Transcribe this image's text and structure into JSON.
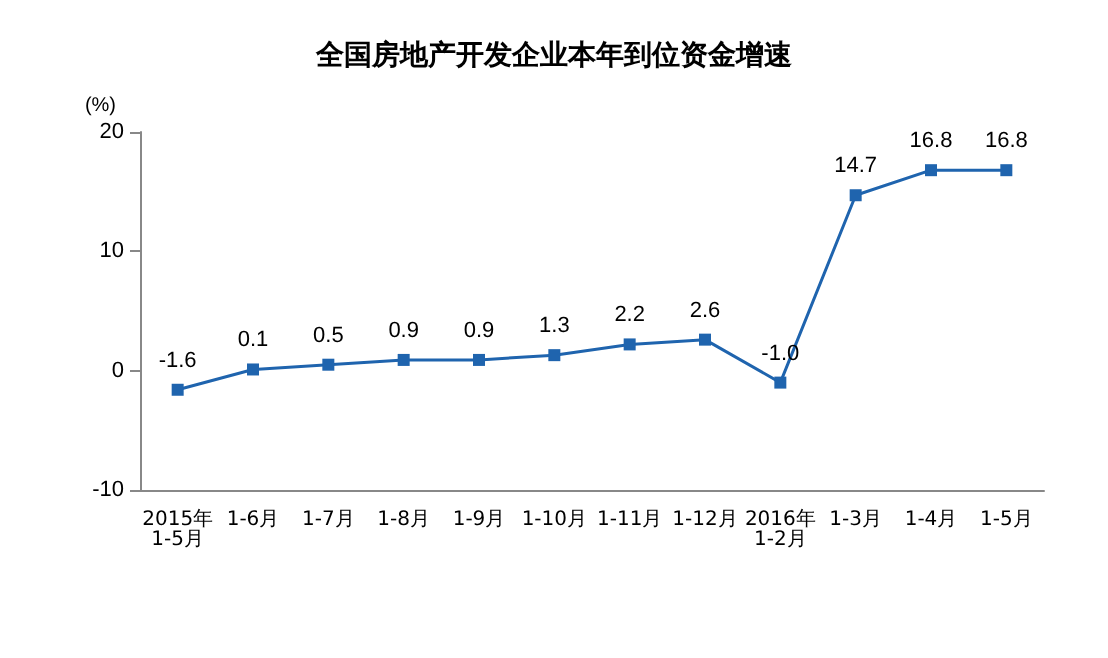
{
  "chart_data": {
    "type": "line",
    "title": "全国房地产开发企业本年到位资金增速",
    "ylabel": "(%)",
    "categories": [
      "2015年\n1-5月",
      "1-6月",
      "1-7月",
      "1-8月",
      "1-9月",
      "1-10月",
      "1-11月",
      "1-12月",
      "2016年\n1-2月",
      "1-3月",
      "1-4月",
      "1-5月"
    ],
    "series": [
      {
        "color": "#1f64ae",
        "values": [
          -1.6,
          0.1,
          0.5,
          0.9,
          0.9,
          1.3,
          2.2,
          2.6,
          -1.0,
          14.7,
          16.8,
          16.8
        ],
        "value_labels": [
          "-1.6",
          "0.1",
          "0.5",
          "0.9",
          "0.9",
          "1.3",
          "2.2",
          "2.6",
          "-1.0",
          "14.7",
          "16.8",
          "16.8"
        ]
      }
    ],
    "ylim": [
      -10,
      20
    ],
    "yticks": [
      -10,
      0,
      10,
      20
    ],
    "grid": false,
    "marker": "square",
    "line_style": "solid"
  }
}
